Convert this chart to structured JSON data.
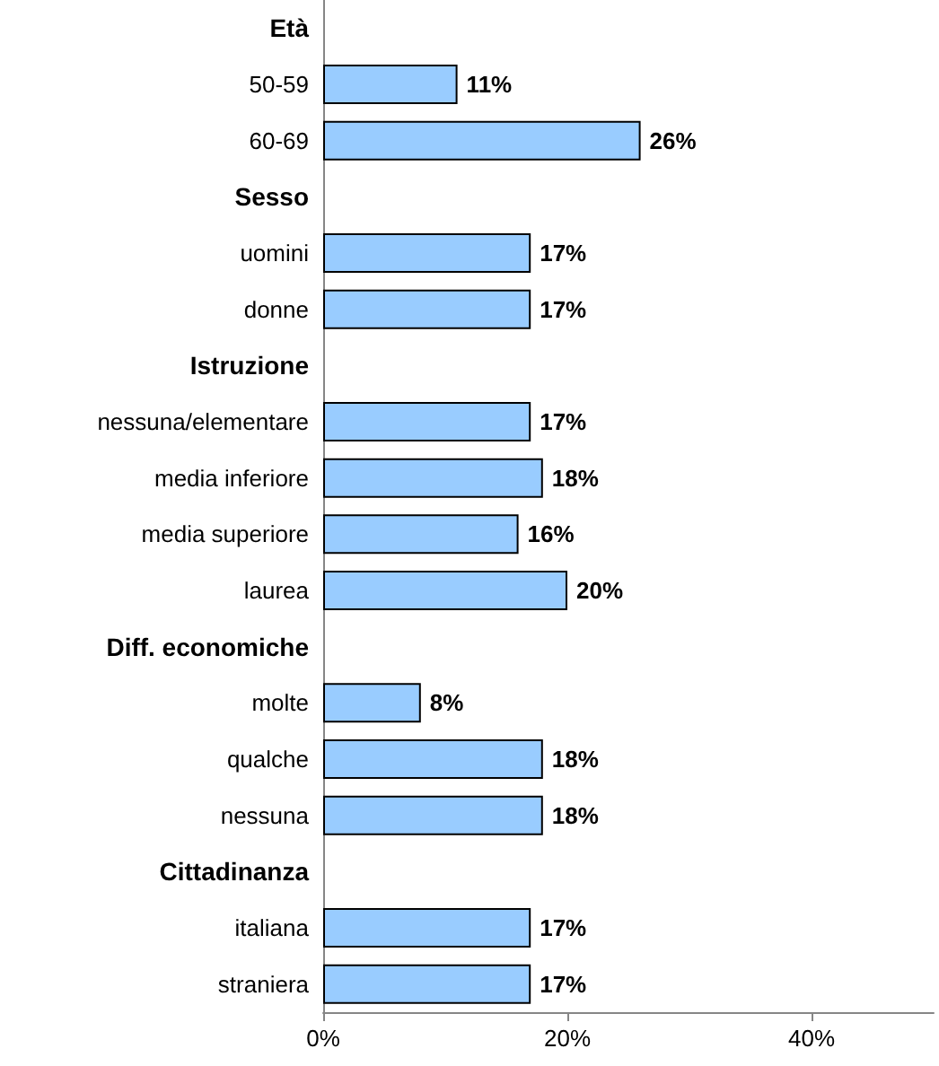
{
  "chart_data": {
    "type": "bar",
    "orientation": "horizontal",
    "categories": [
      "Età",
      "50-59",
      "60-69",
      "Sesso",
      "uomini",
      "donne",
      "Istruzione",
      "nessuna/elementare",
      "media inferiore",
      "media superiore",
      "laurea",
      "Diff. economiche",
      "molte",
      "qualche",
      "nessuna",
      "Cittadinanza",
      "italiana",
      "straniera"
    ],
    "values": [
      null,
      11,
      26,
      null,
      17,
      17,
      null,
      17,
      18,
      16,
      20,
      null,
      8,
      18,
      18,
      null,
      17,
      17
    ],
    "value_labels": [
      null,
      "11%",
      "26%",
      null,
      "17%",
      "17%",
      null,
      "17%",
      "18%",
      "16%",
      "20%",
      null,
      "8%",
      "18%",
      "18%",
      null,
      "17%",
      "17%"
    ],
    "color": "#99ccff",
    "xlim": [
      0,
      50
    ],
    "xticks": [
      {
        "value": 0,
        "label": "0%"
      },
      {
        "value": 20,
        "label": "20%"
      },
      {
        "value": 40,
        "label": "40%"
      }
    ],
    "grid": false
  }
}
